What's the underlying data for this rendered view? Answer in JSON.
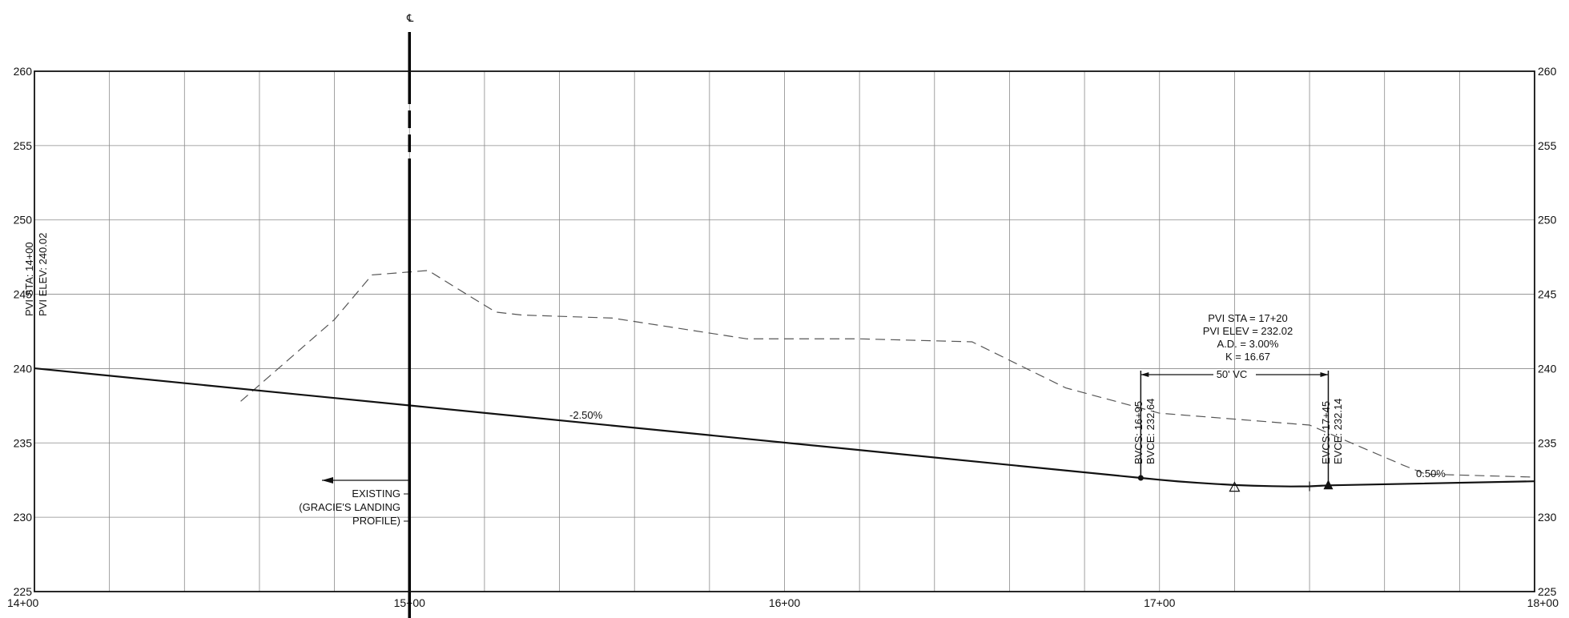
{
  "chart_data": {
    "type": "line",
    "title": "",
    "xlabel": "",
    "ylabel": "",
    "xlim": [
      1400,
      1800
    ],
    "ylim": [
      225,
      260
    ],
    "grid": true,
    "x_ticks": [
      {
        "value": 1400,
        "label": "14+00"
      },
      {
        "value": 1500,
        "label": "15+00"
      },
      {
        "value": 1600,
        "label": "16+00"
      },
      {
        "value": 1700,
        "label": "17+00"
      },
      {
        "value": 1800,
        "label": "18+00"
      }
    ],
    "y_ticks": [
      {
        "value": 225,
        "label": "225"
      },
      {
        "value": 230,
        "label": "230"
      },
      {
        "value": 235,
        "label": "235"
      },
      {
        "value": 240,
        "label": "240"
      },
      {
        "value": 245,
        "label": "245"
      },
      {
        "value": 250,
        "label": "250"
      },
      {
        "value": 255,
        "label": "255"
      },
      {
        "value": 260,
        "label": "260"
      }
    ],
    "series": [
      {
        "kind": "proposed",
        "style": "solid",
        "x": [
          1400,
          1695,
          1700,
          1705,
          1710,
          1715,
          1720,
          1725,
          1730,
          1735,
          1740,
          1745,
          1800
        ],
        "y": [
          240.02,
          232.645,
          232.52,
          232.41,
          232.32,
          232.24,
          232.17,
          232.12,
          232.09,
          232.07,
          232.08,
          232.145,
          232.42
        ]
      },
      {
        "kind": "existing",
        "style": "dashed",
        "x": [
          1455,
          1480,
          1490,
          1505,
          1512,
          1523,
          1530,
          1554,
          1590,
          1620,
          1650,
          1675,
          1700,
          1740,
          1765,
          1771,
          1800
        ],
        "y": [
          237.8,
          243.3,
          246.3,
          246.6,
          245.5,
          243.8,
          243.6,
          243.4,
          242.0,
          242.0,
          241.8,
          238.7,
          237.0,
          236.2,
          233.5,
          232.9,
          232.7
        ]
      }
    ],
    "labels": {
      "pvi_start": [
        "PVI STA: 14+00",
        "PVI ELEV: 240.02"
      ],
      "centerline": "℄",
      "grade_in": "-2.50%",
      "grade_out": "0.50%",
      "existing_note": [
        "EXISTING",
        "(GRACIE'S LANDING",
        "PROFILE)"
      ],
      "pvi_block": [
        "PVI STA = 17+20",
        "PVI ELEV = 232.02",
        "A.D. = 3.00%",
        "K = 16.67"
      ],
      "vc_length": "50' VC",
      "bvc": [
        "BVCS: 16+95",
        "BVCE: 232.64"
      ],
      "evc": [
        "EVCS: 17+45",
        "EVCE: 232.14"
      ]
    },
    "points": {
      "centerline_x": 1500,
      "bvc": {
        "x": 1695,
        "y": 232.645
      },
      "pvi": {
        "x": 1720,
        "y": 232.02
      },
      "evc": {
        "x": 1745,
        "y": 232.145
      },
      "low_point": {
        "x": 1740,
        "y": 232.08
      }
    }
  }
}
